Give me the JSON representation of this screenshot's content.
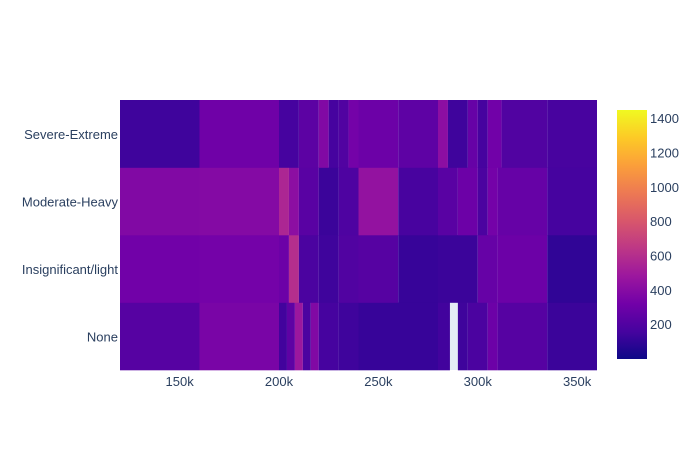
{
  "chart_data": {
    "type": "heatmap",
    "title": "",
    "xlabel": "",
    "ylabel": "",
    "categories": [
      "None",
      "Insignificant/light",
      "Moderate-Heavy",
      "Severe-Extreme"
    ],
    "xlim": [
      120000,
      360000
    ],
    "xticks": [
      {
        "value": 150000,
        "label": "150k"
      },
      {
        "value": 200000,
        "label": "200k"
      },
      {
        "value": 250000,
        "label": "250k"
      },
      {
        "value": 300000,
        "label": "300k"
      },
      {
        "value": 350000,
        "label": "350k"
      }
    ],
    "colorscale": "Plasma",
    "zlim": [
      0,
      1450
    ],
    "colorbar_ticks": [
      {
        "value": 200,
        "label": "200"
      },
      {
        "value": 400,
        "label": "400"
      },
      {
        "value": 600,
        "label": "600"
      },
      {
        "value": 800,
        "label": "800"
      },
      {
        "value": 1000,
        "label": "1000"
      },
      {
        "value": 1200,
        "label": "1200"
      },
      {
        "value": 1400,
        "label": "1400"
      }
    ],
    "cells": {
      "None": [
        {
          "x0": 120000,
          "x1": 160000,
          "value": 220
        },
        {
          "x0": 160000,
          "x1": 200000,
          "value": 350
        },
        {
          "x0": 200000,
          "x1": 204000,
          "value": 150
        },
        {
          "x0": 204000,
          "x1": 208000,
          "value": 250
        },
        {
          "x0": 208000,
          "x1": 212000,
          "value": 480
        },
        {
          "x0": 212000,
          "x1": 216000,
          "value": 180
        },
        {
          "x0": 216000,
          "x1": 220000,
          "value": 380
        },
        {
          "x0": 220000,
          "x1": 230000,
          "value": 160
        },
        {
          "x0": 230000,
          "x1": 240000,
          "value": 140
        },
        {
          "x0": 240000,
          "x1": 280000,
          "value": 120
        },
        {
          "x0": 280000,
          "x1": 286000,
          "value": 150
        },
        {
          "x0": 290000,
          "x1": 295000,
          "value": 140
        },
        {
          "x0": 295000,
          "x1": 305000,
          "value": 180
        },
        {
          "x0": 305000,
          "x1": 310000,
          "value": 300
        },
        {
          "x0": 310000,
          "x1": 335000,
          "value": 220
        },
        {
          "x0": 335000,
          "x1": 360000,
          "value": 130
        }
      ],
      "Insignificant/light": [
        {
          "x0": 120000,
          "x1": 160000,
          "value": 320
        },
        {
          "x0": 160000,
          "x1": 200000,
          "value": 330
        },
        {
          "x0": 200000,
          "x1": 205000,
          "value": 300
        },
        {
          "x0": 205000,
          "x1": 210000,
          "value": 600
        },
        {
          "x0": 210000,
          "x1": 220000,
          "value": 180
        },
        {
          "x0": 220000,
          "x1": 230000,
          "value": 140
        },
        {
          "x0": 230000,
          "x1": 240000,
          "value": 200
        },
        {
          "x0": 240000,
          "x1": 260000,
          "value": 220
        },
        {
          "x0": 260000,
          "x1": 280000,
          "value": 120
        },
        {
          "x0": 280000,
          "x1": 300000,
          "value": 130
        },
        {
          "x0": 300000,
          "x1": 310000,
          "value": 280
        },
        {
          "x0": 310000,
          "x1": 335000,
          "value": 300
        },
        {
          "x0": 335000,
          "x1": 360000,
          "value": 100
        }
      ],
      "Moderate-Heavy": [
        {
          "x0": 120000,
          "x1": 160000,
          "value": 380
        },
        {
          "x0": 160000,
          "x1": 200000,
          "value": 390
        },
        {
          "x0": 200000,
          "x1": 205000,
          "value": 560
        },
        {
          "x0": 205000,
          "x1": 210000,
          "value": 420
        },
        {
          "x0": 210000,
          "x1": 220000,
          "value": 230
        },
        {
          "x0": 220000,
          "x1": 230000,
          "value": 130
        },
        {
          "x0": 230000,
          "x1": 240000,
          "value": 190
        },
        {
          "x0": 240000,
          "x1": 260000,
          "value": 450
        },
        {
          "x0": 260000,
          "x1": 280000,
          "value": 170
        },
        {
          "x0": 280000,
          "x1": 290000,
          "value": 230
        },
        {
          "x0": 290000,
          "x1": 300000,
          "value": 300
        },
        {
          "x0": 300000,
          "x1": 305000,
          "value": 180
        },
        {
          "x0": 305000,
          "x1": 310000,
          "value": 330
        },
        {
          "x0": 310000,
          "x1": 335000,
          "value": 280
        },
        {
          "x0": 335000,
          "x1": 360000,
          "value": 160
        }
      ],
      "Severe-Extreme": [
        {
          "x0": 120000,
          "x1": 160000,
          "value": 140
        },
        {
          "x0": 160000,
          "x1": 200000,
          "value": 310
        },
        {
          "x0": 200000,
          "x1": 210000,
          "value": 160
        },
        {
          "x0": 210000,
          "x1": 220000,
          "value": 240
        },
        {
          "x0": 220000,
          "x1": 225000,
          "value": 380
        },
        {
          "x0": 225000,
          "x1": 230000,
          "value": 160
        },
        {
          "x0": 230000,
          "x1": 235000,
          "value": 200
        },
        {
          "x0": 235000,
          "x1": 240000,
          "value": 330
        },
        {
          "x0": 240000,
          "x1": 260000,
          "value": 300
        },
        {
          "x0": 260000,
          "x1": 280000,
          "value": 250
        },
        {
          "x0": 280000,
          "x1": 285000,
          "value": 420
        },
        {
          "x0": 285000,
          "x1": 295000,
          "value": 140
        },
        {
          "x0": 295000,
          "x1": 300000,
          "value": 280
        },
        {
          "x0": 300000,
          "x1": 305000,
          "value": 160
        },
        {
          "x0": 305000,
          "x1": 312000,
          "value": 320
        },
        {
          "x0": 312000,
          "x1": 335000,
          "value": 200
        },
        {
          "x0": 335000,
          "x1": 360000,
          "value": 170
        }
      ]
    }
  }
}
